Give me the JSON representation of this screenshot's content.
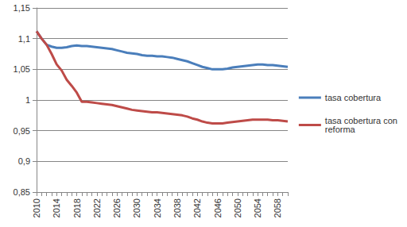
{
  "chart_data": {
    "type": "line",
    "categories": [
      "2010",
      null,
      null,
      null,
      "2014",
      null,
      null,
      null,
      "2018",
      null,
      null,
      null,
      "2022",
      null,
      null,
      null,
      "2026",
      null,
      null,
      null,
      "2030",
      null,
      null,
      null,
      "2034",
      null,
      null,
      null,
      "2038",
      null,
      null,
      null,
      "2042",
      null,
      null,
      null,
      "2046",
      null,
      null,
      null,
      "2050",
      null,
      null,
      null,
      "2054",
      null,
      null,
      null,
      "2058",
      null,
      null
    ],
    "series": [
      {
        "name": "tasa cobertura",
        "color": "#4a7ebb",
        "values": [
          1.112,
          1.1,
          1.09,
          1.087,
          1.085,
          1.085,
          1.086,
          1.088,
          1.089,
          1.088,
          1.088,
          1.087,
          1.086,
          1.085,
          1.084,
          1.083,
          1.081,
          1.079,
          1.077,
          1.076,
          1.075,
          1.073,
          1.072,
          1.072,
          1.071,
          1.071,
          1.07,
          1.069,
          1.067,
          1.065,
          1.063,
          1.06,
          1.057,
          1.054,
          1.052,
          1.05,
          1.05,
          1.05,
          1.051,
          1.053,
          1.054,
          1.055,
          1.056,
          1.057,
          1.058,
          1.058,
          1.057,
          1.057,
          1.056,
          1.055,
          1.054
        ]
      },
      {
        "name": "tasa cobertura con reforma",
        "color": "#be4b48",
        "values": [
          1.112,
          1.1,
          1.09,
          1.075,
          1.058,
          1.048,
          1.033,
          1.023,
          1.012,
          0.997,
          0.997,
          0.996,
          0.995,
          0.994,
          0.993,
          0.992,
          0.99,
          0.988,
          0.986,
          0.984,
          0.983,
          0.982,
          0.981,
          0.98,
          0.98,
          0.979,
          0.978,
          0.977,
          0.976,
          0.975,
          0.973,
          0.97,
          0.968,
          0.965,
          0.963,
          0.962,
          0.962,
          0.962,
          0.963,
          0.964,
          0.965,
          0.966,
          0.967,
          0.968,
          0.968,
          0.968,
          0.968,
          0.967,
          0.967,
          0.966,
          0.965
        ]
      }
    ],
    "ylim": [
      0.85,
      1.15
    ],
    "yticks": [
      {
        "value": 0.85,
        "label": "0,85"
      },
      {
        "value": 0.9,
        "label": "0,9"
      },
      {
        "value": 0.95,
        "label": "0,95"
      },
      {
        "value": 1,
        "label": "1"
      },
      {
        "value": 1.05,
        "label": "1,05"
      },
      {
        "value": 1.1,
        "label": "1,1"
      },
      {
        "value": 1.15,
        "label": "1,15"
      }
    ],
    "grid": true,
    "legend": "right"
  }
}
